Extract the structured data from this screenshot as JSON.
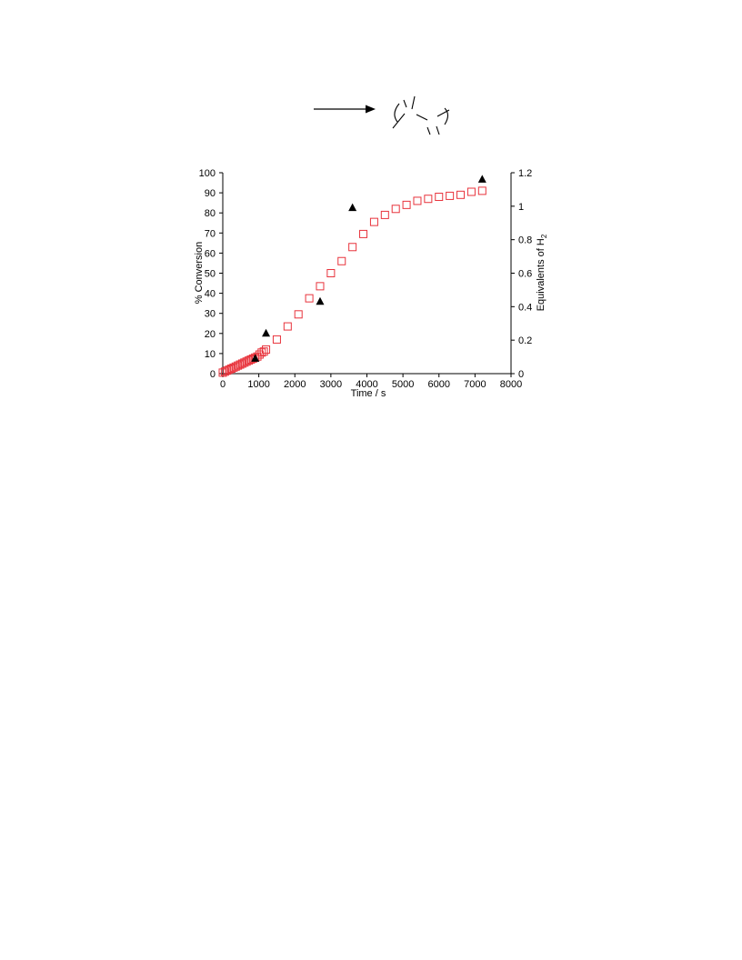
{
  "chart_data": {
    "type": "scatter",
    "xlabel": "Time / s",
    "ylabel_left": "% Conversion",
    "ylabel_right_main": "Equivalents of H",
    "ylabel_right_sub": "2",
    "xlim": [
      0,
      8000
    ],
    "xticks": [
      "0",
      "1000",
      "2000",
      "3000",
      "4000",
      "5000",
      "6000",
      "7000",
      "8000"
    ],
    "ylim_left": [
      0,
      100
    ],
    "yticks_left": [
      "0",
      "10",
      "20",
      "30",
      "40",
      "50",
      "60",
      "70",
      "80",
      "90",
      "100"
    ],
    "ylim_right": [
      0,
      1.2
    ],
    "yticks_right": [
      "0",
      "0.2",
      "0.4",
      "0.6",
      "0.8",
      "1",
      "1.2"
    ],
    "grid": false,
    "series": [
      {
        "axis": "left",
        "marker": "open-square",
        "color": "#e8333c",
        "x": [
          0,
          60,
          120,
          180,
          240,
          300,
          360,
          420,
          480,
          540,
          600,
          660,
          720,
          780,
          840,
          900,
          960,
          1020,
          1080,
          1140,
          1200,
          1500,
          1800,
          2100,
          2400,
          2700,
          3000,
          3300,
          3600,
          3900,
          4200,
          4500,
          4800,
          5100,
          5400,
          5700,
          6000,
          6300,
          6600,
          6900,
          7200
        ],
        "y": [
          0.5,
          1,
          1.5,
          2,
          2.5,
          3,
          3.5,
          4,
          4.5,
          5,
          5.5,
          6,
          6.5,
          7,
          7.5,
          8,
          8.5,
          9.5,
          10.5,
          11,
          12,
          17,
          23.5,
          29.5,
          37.5,
          43.5,
          50,
          56,
          63,
          69.5,
          75.5,
          79,
          82,
          84,
          86,
          87,
          88,
          88.5,
          89,
          90.5,
          91
        ]
      },
      {
        "axis": "right",
        "marker": "filled-triangle",
        "color": "#000000",
        "x": [
          900,
          1200,
          2700,
          3600,
          7200
        ],
        "y": [
          0.09,
          0.24,
          0.43,
          0.99,
          1.16
        ]
      }
    ]
  }
}
